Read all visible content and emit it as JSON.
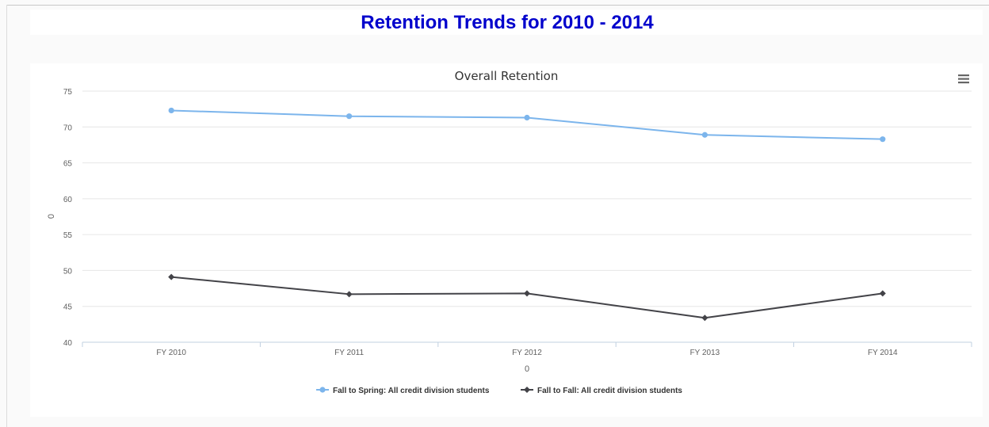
{
  "page": {
    "title": "Retention Trends for 2010 - 2014",
    "title_color": "#0000cc"
  },
  "chart_menu": {
    "icon": "hamburger-menu-icon"
  },
  "chart_data": {
    "type": "line",
    "title": "Overall Retention",
    "xlabel": "0",
    "ylabel": "0",
    "categories": [
      "FY 2010",
      "FY 2011",
      "FY 2012",
      "FY 2013",
      "FY 2014"
    ],
    "ylim": [
      40,
      75
    ],
    "yticks": [
      40,
      45,
      50,
      55,
      60,
      65,
      70,
      75
    ],
    "grid": true,
    "legend_position": "bottom-center",
    "series": [
      {
        "name": "Fall to Spring: All credit division students",
        "values": [
          72.3,
          71.5,
          71.3,
          68.9,
          68.3
        ],
        "color": "#7cb5ec",
        "marker": "circle"
      },
      {
        "name": "Fall to Fall: All credit division students",
        "values": [
          49.1,
          46.7,
          46.8,
          43.4,
          46.8
        ],
        "color": "#434348",
        "marker": "diamond"
      }
    ]
  }
}
